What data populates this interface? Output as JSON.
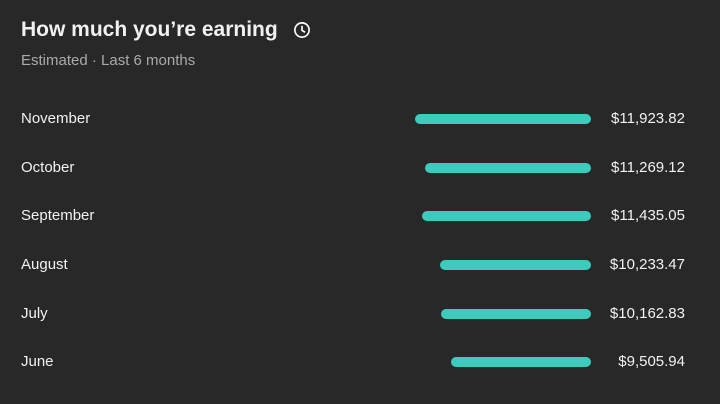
{
  "header": {
    "title": "How much you’re earning",
    "subtitle": "Estimated · Last 6 months",
    "icon": "clock-icon"
  },
  "bar_color": "#3ccbbd",
  "months": [
    {
      "label": "November",
      "value": 11923.82,
      "display": "$11,923.82"
    },
    {
      "label": "October",
      "value": 11269.12,
      "display": "$11,269.12"
    },
    {
      "label": "September",
      "value": 11435.05,
      "display": "$11,435.05"
    },
    {
      "label": "August",
      "value": 10233.47,
      "display": "$10,233.47"
    },
    {
      "label": "July",
      "value": 10162.83,
      "display": "$10,162.83"
    },
    {
      "label": "June",
      "value": 9505.94,
      "display": "$9,505.94"
    }
  ]
}
